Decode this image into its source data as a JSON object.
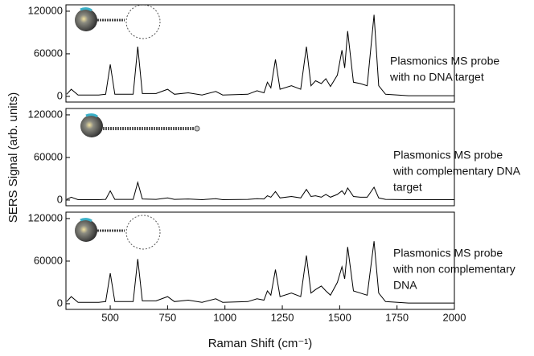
{
  "chart_data": [
    {
      "type": "line",
      "annotation": [
        "Plasmonics MS probe",
        "with no DNA target"
      ],
      "xlim": [
        307,
        2000
      ],
      "ylim": [
        -8000,
        129000
      ],
      "yticks": [
        0,
        60000,
        120000
      ],
      "x": [
        310,
        330,
        360,
        450,
        480,
        500,
        520,
        600,
        620,
        640,
        700,
        750,
        780,
        840,
        900,
        960,
        990,
        1100,
        1140,
        1170,
        1185,
        1200,
        1220,
        1240,
        1290,
        1330,
        1355,
        1375,
        1395,
        1420,
        1440,
        1460,
        1490,
        1510,
        1522,
        1535,
        1560,
        1590,
        1620,
        1650,
        1670,
        1700,
        1800,
        2000
      ],
      "series": [
        {
          "color": "#000000",
          "values": [
            3000,
            10000,
            2000,
            2000,
            3000,
            45000,
            3000,
            3000,
            70000,
            4000,
            4000,
            10000,
            3000,
            5000,
            2000,
            7000,
            2000,
            3000,
            8000,
            5000,
            20000,
            12000,
            52000,
            10000,
            15000,
            10000,
            70000,
            15000,
            22000,
            18000,
            25000,
            14000,
            30000,
            65000,
            40000,
            92000,
            20000,
            18000,
            15000,
            115000,
            15000,
            3000,
            1000,
            1000
          ]
        }
      ]
    },
    {
      "type": "line",
      "annotation": [
        "Plasmonics MS probe",
        "with complementary DNA",
        "target"
      ],
      "ylabel": "SERS Signal (arb. units)",
      "xlim": [
        307,
        2000
      ],
      "ylim": [
        -8000,
        129000
      ],
      "yticks": [
        0,
        60000,
        120000
      ],
      "x": [
        310,
        330,
        360,
        450,
        480,
        500,
        520,
        600,
        620,
        640,
        700,
        750,
        780,
        840,
        900,
        960,
        990,
        1100,
        1140,
        1170,
        1185,
        1200,
        1220,
        1240,
        1290,
        1330,
        1355,
        1375,
        1395,
        1420,
        1440,
        1460,
        1490,
        1510,
        1522,
        1535,
        1560,
        1590,
        1620,
        1650,
        1670,
        1700,
        1800,
        2000
      ],
      "series": [
        {
          "color": "#000000",
          "values": [
            1000,
            4000,
            500,
            500,
            1000,
            13000,
            1000,
            1000,
            25000,
            1500,
            1000,
            3000,
            1000,
            1500,
            500,
            2000,
            500,
            1000,
            2000,
            1500,
            6000,
            4000,
            12000,
            3000,
            5000,
            3000,
            15000,
            5000,
            6000,
            4000,
            8000,
            4000,
            8000,
            13000,
            8000,
            17000,
            5000,
            4000,
            4000,
            18000,
            3000,
            1000,
            500,
            500
          ]
        }
      ]
    },
    {
      "type": "line",
      "annotation": [
        "Plasmonics MS probe",
        "with non complementary",
        "DNA"
      ],
      "xlabel": "Raman Shift (cm⁻¹)",
      "xlim": [
        307,
        2000
      ],
      "ylim": [
        -8000,
        129000
      ],
      "yticks": [
        0,
        60000,
        120000
      ],
      "xticks": [
        500,
        750,
        1000,
        1250,
        1500,
        1750,
        2000
      ],
      "x": [
        310,
        330,
        360,
        450,
        480,
        500,
        520,
        600,
        620,
        640,
        700,
        750,
        780,
        840,
        900,
        960,
        990,
        1100,
        1140,
        1170,
        1185,
        1200,
        1220,
        1240,
        1290,
        1330,
        1355,
        1375,
        1395,
        1420,
        1440,
        1460,
        1490,
        1510,
        1522,
        1535,
        1560,
        1590,
        1620,
        1650,
        1670,
        1700,
        1800,
        2000
      ],
      "series": [
        {
          "color": "#000000",
          "values": [
            3000,
            10000,
            2000,
            2000,
            3000,
            43000,
            3000,
            3000,
            63000,
            4000,
            4000,
            10000,
            3000,
            5000,
            2000,
            7000,
            2000,
            3000,
            7000,
            5000,
            18000,
            12000,
            48000,
            10000,
            15000,
            10000,
            68000,
            15000,
            20000,
            25000,
            18000,
            12000,
            30000,
            52000,
            35000,
            80000,
            18000,
            15000,
            12000,
            88000,
            15000,
            3000,
            1000,
            1000
          ]
        }
      ]
    }
  ]
}
